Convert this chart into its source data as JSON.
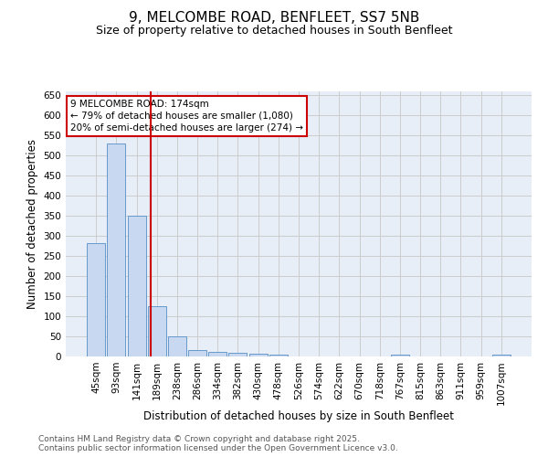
{
  "title1": "9, MELCOMBE ROAD, BENFLEET, SS7 5NB",
  "title2": "Size of property relative to detached houses in South Benfleet",
  "xlabel": "Distribution of detached houses by size in South Benfleet",
  "ylabel": "Number of detached properties",
  "categories": [
    "45sqm",
    "93sqm",
    "141sqm",
    "189sqm",
    "238sqm",
    "286sqm",
    "334sqm",
    "382sqm",
    "430sqm",
    "478sqm",
    "526sqm",
    "574sqm",
    "622sqm",
    "670sqm",
    "718sqm",
    "767sqm",
    "815sqm",
    "863sqm",
    "911sqm",
    "959sqm",
    "1007sqm"
  ],
  "values": [
    283,
    530,
    350,
    125,
    50,
    17,
    12,
    10,
    7,
    5,
    0,
    0,
    0,
    0,
    0,
    5,
    0,
    0,
    0,
    0,
    5
  ],
  "bar_color": "#c8d8f0",
  "bar_edge_color": "#6699cc",
  "annotation_text": "9 MELCOMBE ROAD: 174sqm\n← 79% of detached houses are smaller (1,080)\n20% of semi-detached houses are larger (274) →",
  "annotation_box_color": "#ffffff",
  "annotation_box_edge_color": "#cc0000",
  "red_line_color": "#cc0000",
  "ylim": [
    0,
    660
  ],
  "yticks": [
    0,
    50,
    100,
    150,
    200,
    250,
    300,
    350,
    400,
    450,
    500,
    550,
    600,
    650
  ],
  "grid_color": "#cccccc",
  "background_color": "#e8eef8",
  "footer": "Contains HM Land Registry data © Crown copyright and database right 2025.\nContains public sector information licensed under the Open Government Licence v3.0.",
  "title1_fontsize": 11,
  "title2_fontsize": 9,
  "xlabel_fontsize": 8.5,
  "ylabel_fontsize": 8.5,
  "tick_fontsize": 7.5,
  "footer_fontsize": 6.5
}
